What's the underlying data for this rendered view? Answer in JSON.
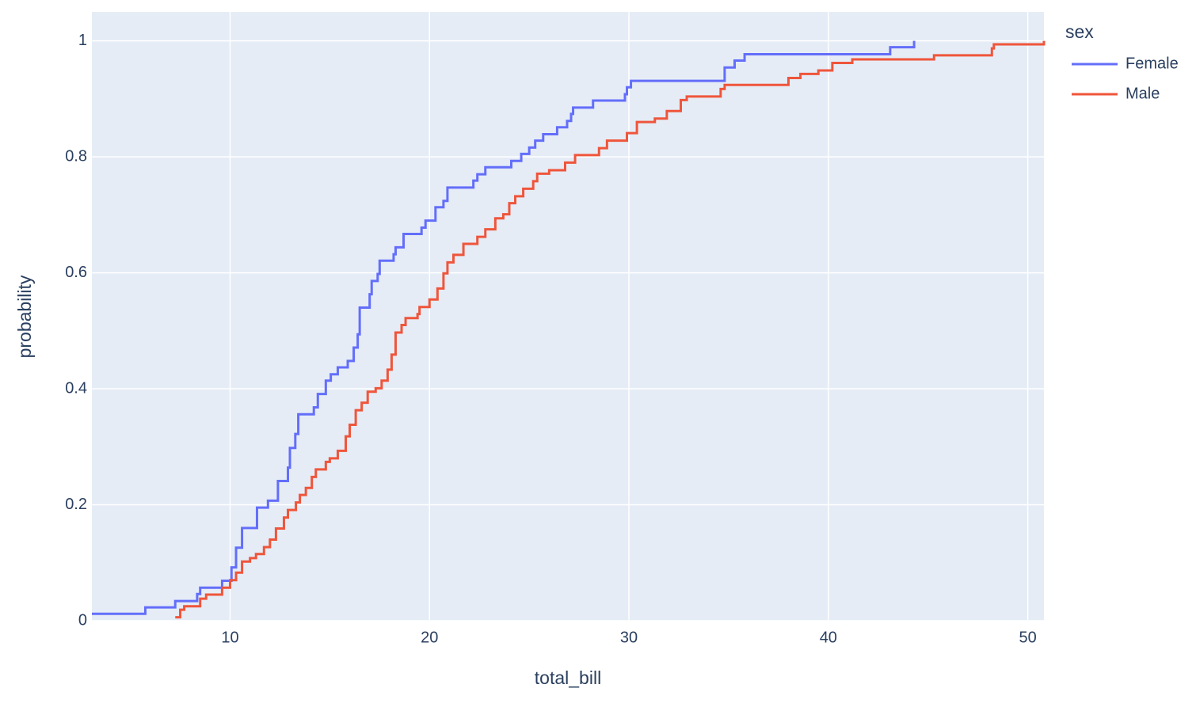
{
  "chart_data": {
    "type": "line",
    "line_shape": "hv",
    "x_label": "total_bill",
    "y_label": "probability",
    "legend_title": "sex",
    "legend_position": "right",
    "grid": true,
    "xlim": [
      3.07,
      50.81
    ],
    "ylim": [
      0,
      1.05
    ],
    "xticks": [
      10,
      20,
      30,
      40,
      50
    ],
    "yticks": [
      0,
      0.2,
      0.4,
      0.6,
      0.8,
      1
    ],
    "series": [
      {
        "name": "Female",
        "color": "#636efa",
        "x": [
          3.07,
          5.75,
          7.25,
          8.35,
          8.5,
          9.6,
          10.07,
          10.3,
          10.6,
          11.35,
          11.9,
          12.4,
          12.9,
          13.0,
          13.27,
          13.42,
          14.2,
          14.4,
          14.8,
          15.05,
          15.4,
          15.9,
          16.2,
          16.4,
          16.5,
          17.0,
          17.1,
          17.4,
          17.5,
          18.2,
          18.3,
          18.7,
          19.6,
          19.8,
          20.3,
          20.7,
          20.9,
          22.2,
          22.4,
          22.8,
          24.1,
          24.6,
          25.0,
          25.3,
          25.7,
          26.4,
          26.9,
          27.1,
          27.2,
          28.2,
          29.8,
          29.9,
          30.1,
          34.8,
          35.3,
          35.8,
          43.1,
          44.3
        ],
        "values": [
          0.012,
          0.023,
          0.034,
          0.046,
          0.057,
          0.069,
          0.092,
          0.126,
          0.16,
          0.195,
          0.207,
          0.241,
          0.264,
          0.298,
          0.322,
          0.356,
          0.368,
          0.391,
          0.414,
          0.425,
          0.437,
          0.448,
          0.471,
          0.494,
          0.54,
          0.563,
          0.586,
          0.598,
          0.621,
          0.632,
          0.644,
          0.667,
          0.678,
          0.69,
          0.713,
          0.724,
          0.747,
          0.759,
          0.77,
          0.782,
          0.793,
          0.805,
          0.816,
          0.828,
          0.839,
          0.851,
          0.862,
          0.874,
          0.885,
          0.897,
          0.908,
          0.92,
          0.931,
          0.954,
          0.966,
          0.977,
          0.989,
          1.0
        ]
      },
      {
        "name": "Male",
        "color": "#EF553B",
        "x": [
          7.25,
          7.5,
          7.7,
          8.5,
          8.8,
          9.6,
          10.0,
          10.3,
          10.6,
          11.0,
          11.3,
          11.7,
          12.0,
          12.3,
          12.7,
          12.9,
          13.3,
          13.5,
          13.8,
          14.1,
          14.3,
          14.8,
          15.0,
          15.4,
          15.8,
          16.0,
          16.3,
          16.6,
          16.9,
          17.3,
          17.6,
          17.9,
          18.1,
          18.3,
          18.6,
          18.8,
          19.4,
          19.5,
          20.0,
          20.4,
          20.7,
          20.9,
          21.2,
          21.7,
          22.4,
          22.8,
          23.3,
          23.7,
          24.0,
          24.3,
          24.7,
          25.2,
          25.4,
          26.0,
          26.8,
          27.3,
          28.5,
          28.9,
          29.9,
          30.4,
          31.3,
          31.9,
          32.6,
          32.9,
          34.6,
          34.8,
          38.0,
          38.6,
          39.5,
          40.2,
          41.2,
          45.3,
          48.2,
          48.3,
          50.81
        ],
        "values": [
          0.006,
          0.019,
          0.025,
          0.038,
          0.045,
          0.057,
          0.07,
          0.083,
          0.102,
          0.108,
          0.115,
          0.127,
          0.14,
          0.159,
          0.178,
          0.191,
          0.204,
          0.217,
          0.229,
          0.248,
          0.261,
          0.274,
          0.28,
          0.293,
          0.318,
          0.338,
          0.363,
          0.376,
          0.395,
          0.401,
          0.414,
          0.433,
          0.459,
          0.497,
          0.51,
          0.522,
          0.529,
          0.541,
          0.554,
          0.573,
          0.599,
          0.618,
          0.631,
          0.65,
          0.662,
          0.675,
          0.694,
          0.701,
          0.72,
          0.732,
          0.745,
          0.758,
          0.771,
          0.777,
          0.79,
          0.803,
          0.815,
          0.828,
          0.841,
          0.86,
          0.866,
          0.879,
          0.898,
          0.904,
          0.917,
          0.924,
          0.936,
          0.943,
          0.949,
          0.962,
          0.968,
          0.975,
          0.987,
          0.994,
          1.0
        ]
      }
    ]
  }
}
